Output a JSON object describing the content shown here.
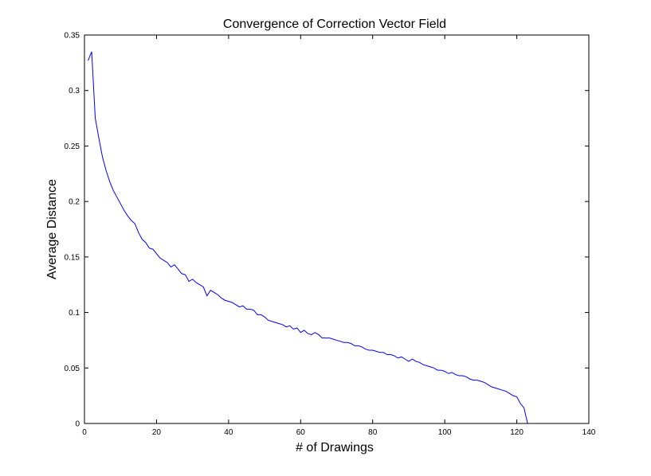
{
  "chart_data": {
    "type": "line",
    "title": "Convergence of Correction Vector Field",
    "xlabel": "# of Drawings",
    "ylabel": "Average Distance",
    "xlim": [
      0,
      140
    ],
    "ylim": [
      0,
      0.35
    ],
    "xticks": [
      "0",
      "20",
      "40",
      "60",
      "80",
      "100",
      "120",
      "140"
    ],
    "yticks": [
      "0",
      "0.05",
      "0.1",
      "0.15",
      "0.2",
      "0.25",
      "0.3",
      "0.35"
    ],
    "grid": false,
    "series": [
      {
        "color": "#0000ff",
        "x": [
          1,
          2,
          3,
          4,
          5,
          6,
          7,
          8,
          9,
          10,
          11,
          12,
          13,
          14,
          15,
          16,
          17,
          18,
          19,
          20,
          21,
          22,
          23,
          24,
          25,
          26,
          27,
          28,
          29,
          30,
          31,
          32,
          33,
          34,
          35,
          36,
          37,
          38,
          39,
          40,
          41,
          42,
          43,
          44,
          45,
          46,
          47,
          48,
          49,
          50,
          51,
          52,
          53,
          54,
          55,
          56,
          57,
          58,
          59,
          60,
          61,
          62,
          63,
          64,
          65,
          66,
          67,
          68,
          69,
          70,
          71,
          72,
          73,
          74,
          75,
          76,
          77,
          78,
          79,
          80,
          81,
          82,
          83,
          84,
          85,
          86,
          87,
          88,
          89,
          90,
          91,
          92,
          93,
          94,
          95,
          96,
          97,
          98,
          99,
          100,
          101,
          102,
          103,
          104,
          105,
          106,
          107,
          108,
          109,
          110,
          111,
          112,
          113,
          114,
          115,
          116,
          117,
          118,
          119,
          120,
          121,
          122,
          123
        ],
        "y": [
          0.327,
          0.335,
          0.275,
          0.257,
          0.24,
          0.228,
          0.218,
          0.21,
          0.204,
          0.198,
          0.192,
          0.187,
          0.183,
          0.18,
          0.172,
          0.166,
          0.163,
          0.158,
          0.157,
          0.153,
          0.149,
          0.147,
          0.145,
          0.141,
          0.143,
          0.139,
          0.135,
          0.134,
          0.128,
          0.13,
          0.127,
          0.125,
          0.123,
          0.115,
          0.12,
          0.118,
          0.116,
          0.113,
          0.111,
          0.11,
          0.109,
          0.107,
          0.105,
          0.106,
          0.103,
          0.103,
          0.102,
          0.098,
          0.098,
          0.096,
          0.093,
          0.092,
          0.091,
          0.09,
          0.089,
          0.087,
          0.088,
          0.085,
          0.086,
          0.082,
          0.084,
          0.081,
          0.08,
          0.082,
          0.08,
          0.077,
          0.077,
          0.077,
          0.076,
          0.075,
          0.074,
          0.073,
          0.073,
          0.072,
          0.07,
          0.07,
          0.069,
          0.067,
          0.066,
          0.066,
          0.065,
          0.064,
          0.064,
          0.062,
          0.062,
          0.061,
          0.059,
          0.06,
          0.058,
          0.056,
          0.058,
          0.056,
          0.055,
          0.053,
          0.052,
          0.051,
          0.05,
          0.048,
          0.048,
          0.047,
          0.045,
          0.046,
          0.044,
          0.043,
          0.043,
          0.042,
          0.04,
          0.039,
          0.039,
          0.038,
          0.037,
          0.035,
          0.033,
          0.032,
          0.031,
          0.03,
          0.029,
          0.027,
          0.025,
          0.024,
          0.018,
          0.014,
          0.0
        ]
      }
    ]
  }
}
